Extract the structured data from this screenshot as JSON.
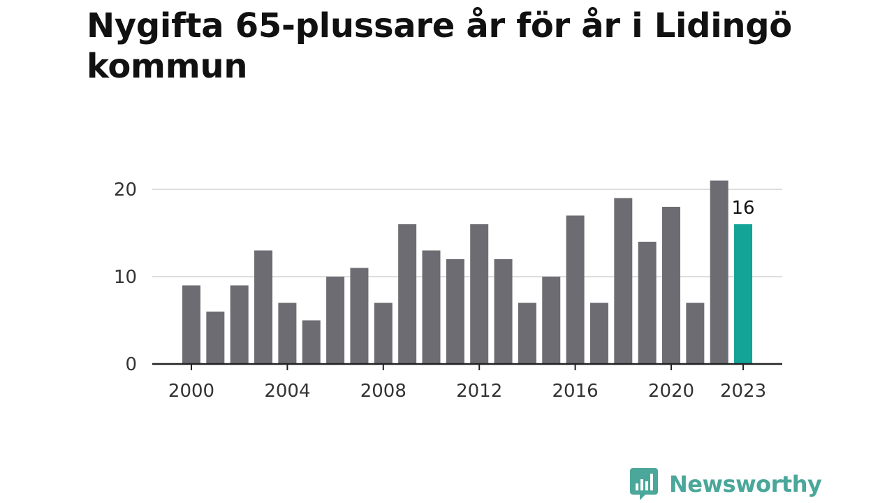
{
  "title": "Nygifta 65-plussare år för år i Lidingö kommun",
  "brand": {
    "name": "Newsworthy",
    "icon": "bar-chart-speech-bubble-icon",
    "color": "#4aa79a"
  },
  "chart_data": {
    "type": "bar",
    "title": "Nygifta 65-plussare år för år i Lidingö kommun",
    "xlabel": "",
    "ylabel": "",
    "categories": [
      2000,
      2001,
      2002,
      2003,
      2004,
      2005,
      2006,
      2007,
      2008,
      2009,
      2010,
      2011,
      2012,
      2013,
      2014,
      2015,
      2016,
      2017,
      2018,
      2019,
      2020,
      2021,
      2022,
      2023
    ],
    "values": [
      9,
      6,
      9,
      13,
      7,
      5,
      10,
      11,
      7,
      16,
      13,
      12,
      16,
      12,
      7,
      10,
      17,
      7,
      19,
      14,
      18,
      7,
      21,
      16
    ],
    "x_tick_labels": [
      "2000",
      "2004",
      "2008",
      "2012",
      "2016",
      "2020",
      "2023"
    ],
    "y_ticks": [
      0,
      10,
      20
    ],
    "ylim": [
      0,
      21
    ],
    "grid": "horizontal",
    "legend": "none",
    "highlight": {
      "category": 2023,
      "value_label": "16"
    },
    "colors": {
      "bar": "#6d6c72",
      "highlight": "#13a397",
      "grid": "#dddddd",
      "axis": "#222222"
    }
  }
}
